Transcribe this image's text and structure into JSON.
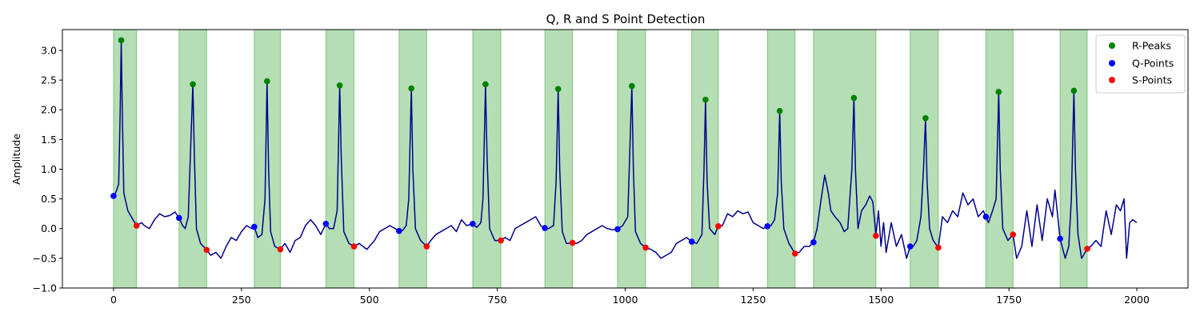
{
  "chart_data": {
    "type": "line",
    "title": "Q, R and S Point Detection",
    "xlabel": "",
    "ylabel": "Amplitude",
    "xlim": [
      -100,
      2100
    ],
    "ylim": [
      -1.0,
      3.35
    ],
    "xticks": [
      0,
      250,
      500,
      750,
      1000,
      1250,
      1500,
      1750,
      2000
    ],
    "xtick_labels": [
      "0",
      "250",
      "500",
      "750",
      "1000",
      "1250",
      "1500",
      "1750",
      "2000"
    ],
    "yticks": [
      -1.0,
      -0.5,
      0.0,
      0.5,
      1.0,
      1.5,
      2.0,
      2.5,
      3.0
    ],
    "ytick_labels": [
      "−1.0",
      "−0.5",
      "0.0",
      "0.5",
      "1.0",
      "1.5",
      "2.0",
      "2.5",
      "3.0"
    ],
    "grid": false,
    "legend_position": "top-right",
    "colors": {
      "signal": "#00008b",
      "r_peaks": "#008000",
      "q_points": "#0000ff",
      "s_points": "#ff0000",
      "span_fill": "#2ca02c"
    },
    "signal_keypoints": [
      [
        0,
        0.55
      ],
      [
        5,
        0.62
      ],
      [
        10,
        0.75
      ],
      [
        13,
        2.0
      ],
      [
        15,
        3.17
      ],
      [
        17,
        2.0
      ],
      [
        20,
        0.6
      ],
      [
        28,
        0.3
      ],
      [
        38,
        0.15
      ],
      [
        45,
        0.05
      ],
      [
        55,
        0.1
      ],
      [
        60,
        0.05
      ],
      [
        70,
        0.0
      ],
      [
        80,
        0.15
      ],
      [
        90,
        0.25
      ],
      [
        100,
        0.2
      ],
      [
        110,
        0.22
      ],
      [
        120,
        0.28
      ],
      [
        128,
        0.18
      ],
      [
        135,
        0.05
      ],
      [
        140,
        0.0
      ],
      [
        146,
        0.2
      ],
      [
        150,
        1.2
      ],
      [
        155,
        2.43
      ],
      [
        158,
        1.2
      ],
      [
        162,
        0.0
      ],
      [
        170,
        -0.25
      ],
      [
        182,
        -0.36
      ],
      [
        190,
        -0.45
      ],
      [
        200,
        -0.4
      ],
      [
        210,
        -0.5
      ],
      [
        220,
        -0.3
      ],
      [
        230,
        -0.15
      ],
      [
        240,
        -0.2
      ],
      [
        250,
        -0.05
      ],
      [
        260,
        0.05
      ],
      [
        270,
        0.0
      ],
      [
        275,
        0.03
      ],
      [
        282,
        -0.15
      ],
      [
        290,
        -0.1
      ],
      [
        296,
        0.5
      ],
      [
        300,
        2.48
      ],
      [
        303,
        1.0
      ],
      [
        307,
        -0.05
      ],
      [
        315,
        -0.3
      ],
      [
        326,
        -0.35
      ],
      [
        335,
        -0.25
      ],
      [
        345,
        -0.4
      ],
      [
        355,
        -0.2
      ],
      [
        365,
        -0.15
      ],
      [
        375,
        0.05
      ],
      [
        385,
        0.15
      ],
      [
        395,
        0.05
      ],
      [
        405,
        -0.1
      ],
      [
        415,
        0.08
      ],
      [
        422,
        0.0
      ],
      [
        430,
        0.0
      ],
      [
        437,
        0.3
      ],
      [
        442,
        2.41
      ],
      [
        445,
        1.2
      ],
      [
        450,
        -0.05
      ],
      [
        460,
        -0.25
      ],
      [
        470,
        -0.3
      ],
      [
        480,
        -0.25
      ],
      [
        495,
        -0.35
      ],
      [
        510,
        -0.2
      ],
      [
        520,
        -0.05
      ],
      [
        530,
        0.0
      ],
      [
        540,
        0.05
      ],
      [
        550,
        0.0
      ],
      [
        558,
        -0.04
      ],
      [
        565,
        -0.03
      ],
      [
        572,
        0.05
      ],
      [
        577,
        0.5
      ],
      [
        582,
        2.36
      ],
      [
        585,
        1.0
      ],
      [
        590,
        0.0
      ],
      [
        600,
        -0.2
      ],
      [
        612,
        -0.3
      ],
      [
        620,
        -0.2
      ],
      [
        630,
        -0.1
      ],
      [
        640,
        -0.05
      ],
      [
        650,
        0.0
      ],
      [
        660,
        0.05
      ],
      [
        670,
        -0.05
      ],
      [
        680,
        0.15
      ],
      [
        690,
        0.05
      ],
      [
        702,
        0.08
      ],
      [
        710,
        0.02
      ],
      [
        718,
        0.1
      ],
      [
        722,
        0.5
      ],
      [
        727,
        2.43
      ],
      [
        730,
        1.2
      ],
      [
        735,
        0.0
      ],
      [
        745,
        -0.2
      ],
      [
        757,
        -0.2
      ],
      [
        765,
        -0.15
      ],
      [
        775,
        -0.2
      ],
      [
        785,
        0.0
      ],
      [
        795,
        0.05
      ],
      [
        805,
        0.1
      ],
      [
        815,
        0.15
      ],
      [
        825,
        0.2
      ],
      [
        835,
        0.05
      ],
      [
        843,
        0.0
      ],
      [
        850,
        0.0
      ],
      [
        860,
        0.05
      ],
      [
        865,
        0.8
      ],
      [
        869,
        2.35
      ],
      [
        872,
        1.0
      ],
      [
        877,
        -0.05
      ],
      [
        885,
        -0.25
      ],
      [
        897,
        -0.24
      ],
      [
        905,
        -0.25
      ],
      [
        915,
        -0.2
      ],
      [
        925,
        -0.1
      ],
      [
        935,
        -0.05
      ],
      [
        945,
        0.0
      ],
      [
        955,
        0.05
      ],
      [
        965,
        0.0
      ],
      [
        975,
        -0.02
      ],
      [
        985,
        -0.01
      ],
      [
        995,
        0.05
      ],
      [
        1005,
        0.2
      ],
      [
        1013,
        2.4
      ],
      [
        1016,
        1.0
      ],
      [
        1020,
        -0.05
      ],
      [
        1030,
        -0.25
      ],
      [
        1040,
        -0.32
      ],
      [
        1050,
        -0.35
      ],
      [
        1060,
        -0.4
      ],
      [
        1070,
        -0.5
      ],
      [
        1080,
        -0.45
      ],
      [
        1090,
        -0.4
      ],
      [
        1100,
        -0.25
      ],
      [
        1110,
        -0.2
      ],
      [
        1120,
        -0.15
      ],
      [
        1130,
        -0.22
      ],
      [
        1140,
        -0.25
      ],
      [
        1150,
        -0.1
      ],
      [
        1154,
        1.0
      ],
      [
        1157,
        2.17
      ],
      [
        1160,
        0.8
      ],
      [
        1165,
        0.0
      ],
      [
        1175,
        -0.1
      ],
      [
        1182,
        0.04
      ],
      [
        1190,
        0.05
      ],
      [
        1200,
        0.25
      ],
      [
        1210,
        0.2
      ],
      [
        1220,
        0.3
      ],
      [
        1230,
        0.25
      ],
      [
        1240,
        0.28
      ],
      [
        1250,
        0.1
      ],
      [
        1260,
        0.05
      ],
      [
        1270,
        0.0
      ],
      [
        1278,
        0.04
      ],
      [
        1285,
        0.05
      ],
      [
        1292,
        0.15
      ],
      [
        1298,
        0.6
      ],
      [
        1302,
        1.98
      ],
      [
        1305,
        0.8
      ],
      [
        1310,
        0.0
      ],
      [
        1320,
        -0.25
      ],
      [
        1332,
        -0.42
      ],
      [
        1340,
        -0.4
      ],
      [
        1350,
        -0.3
      ],
      [
        1360,
        -0.3
      ],
      [
        1368,
        -0.23
      ],
      [
        1375,
        0.0
      ],
      [
        1383,
        0.5
      ],
      [
        1390,
        0.9
      ],
      [
        1397,
        0.6
      ],
      [
        1402,
        0.3
      ],
      [
        1410,
        0.2
      ],
      [
        1420,
        0.1
      ],
      [
        1428,
        -0.05
      ],
      [
        1435,
        0.0
      ],
      [
        1443,
        1.0
      ],
      [
        1447,
        2.2
      ],
      [
        1450,
        1.0
      ],
      [
        1455,
        0.0
      ],
      [
        1462,
        0.3
      ],
      [
        1470,
        0.4
      ],
      [
        1478,
        0.55
      ],
      [
        1484,
        0.45
      ],
      [
        1490,
        -0.12
      ],
      [
        1495,
        0.3
      ],
      [
        1500,
        -0.3
      ],
      [
        1505,
        0.1
      ],
      [
        1510,
        -0.4
      ],
      [
        1520,
        0.1
      ],
      [
        1530,
        -0.3
      ],
      [
        1540,
        -0.1
      ],
      [
        1550,
        -0.5
      ],
      [
        1557,
        -0.3
      ],
      [
        1563,
        -0.3
      ],
      [
        1570,
        -0.2
      ],
      [
        1578,
        0.2
      ],
      [
        1583,
        1.0
      ],
      [
        1587,
        1.86
      ],
      [
        1590,
        0.8
      ],
      [
        1595,
        0.0
      ],
      [
        1602,
        -0.2
      ],
      [
        1612,
        -0.32
      ],
      [
        1620,
        0.2
      ],
      [
        1630,
        0.1
      ],
      [
        1640,
        0.3
      ],
      [
        1650,
        0.2
      ],
      [
        1660,
        0.6
      ],
      [
        1670,
        0.4
      ],
      [
        1680,
        0.5
      ],
      [
        1690,
        0.2
      ],
      [
        1700,
        0.3
      ],
      [
        1705,
        0.2
      ],
      [
        1710,
        0.1
      ],
      [
        1718,
        0.3
      ],
      [
        1725,
        0.5
      ],
      [
        1730,
        2.3
      ],
      [
        1733,
        1.0
      ],
      [
        1738,
        0.0
      ],
      [
        1748,
        -0.2
      ],
      [
        1758,
        -0.1
      ],
      [
        1765,
        -0.5
      ],
      [
        1775,
        -0.3
      ],
      [
        1785,
        0.3
      ],
      [
        1795,
        -0.3
      ],
      [
        1805,
        0.4
      ],
      [
        1815,
        -0.2
      ],
      [
        1825,
        0.5
      ],
      [
        1835,
        0.2
      ],
      [
        1840,
        0.65
      ],
      [
        1850,
        -0.17
      ],
      [
        1860,
        -0.5
      ],
      [
        1867,
        -0.3
      ],
      [
        1872,
        0.5
      ],
      [
        1877,
        2.32
      ],
      [
        1880,
        1.0
      ],
      [
        1885,
        -0.1
      ],
      [
        1892,
        -0.5
      ],
      [
        1903,
        -0.34
      ],
      [
        1910,
        -0.3
      ],
      [
        1920,
        -0.2
      ],
      [
        1930,
        -0.3
      ],
      [
        1940,
        0.3
      ],
      [
        1950,
        -0.1
      ],
      [
        1960,
        0.4
      ],
      [
        1968,
        0.3
      ],
      [
        1975,
        0.5
      ],
      [
        1980,
        -0.5
      ],
      [
        1986,
        0.1
      ],
      [
        1992,
        0.15
      ],
      [
        2000,
        0.1
      ]
    ],
    "series": [
      {
        "name": "R-Peaks",
        "x": [
          15,
          155,
          300,
          442,
          582,
          727,
          869,
          1013,
          1157,
          1302,
          1447,
          1587,
          1730,
          1877
        ],
        "y": [
          3.17,
          2.43,
          2.48,
          2.41,
          2.36,
          2.43,
          2.35,
          2.4,
          2.17,
          1.98,
          2.2,
          1.86,
          2.3,
          2.32
        ]
      },
      {
        "name": "Q-Points",
        "x": [
          0,
          128,
          275,
          415,
          558,
          702,
          843,
          985,
          1130,
          1278,
          1368,
          1557,
          1705,
          1850
        ],
        "y": [
          0.55,
          0.18,
          0.03,
          0.08,
          -0.04,
          0.08,
          0.01,
          -0.01,
          -0.22,
          0.04,
          -0.23,
          -0.3,
          0.2,
          -0.17
        ]
      },
      {
        "name": "S-Points",
        "x": [
          45,
          182,
          326,
          470,
          612,
          757,
          897,
          1040,
          1182,
          1332,
          1490,
          1612,
          1758,
          1903
        ],
        "y": [
          0.05,
          -0.36,
          -0.35,
          -0.3,
          -0.3,
          -0.2,
          -0.24,
          -0.32,
          0.04,
          -0.42,
          -0.12,
          -0.32,
          -0.1,
          -0.34
        ]
      }
    ],
    "spans": [
      [
        0,
        45
      ],
      [
        128,
        182
      ],
      [
        275,
        326
      ],
      [
        415,
        470
      ],
      [
        558,
        612
      ],
      [
        702,
        757
      ],
      [
        843,
        897
      ],
      [
        985,
        1040
      ],
      [
        1130,
        1182
      ],
      [
        1278,
        1332
      ],
      [
        1368,
        1490
      ],
      [
        1557,
        1612
      ],
      [
        1705,
        1758
      ],
      [
        1850,
        1903
      ]
    ]
  }
}
